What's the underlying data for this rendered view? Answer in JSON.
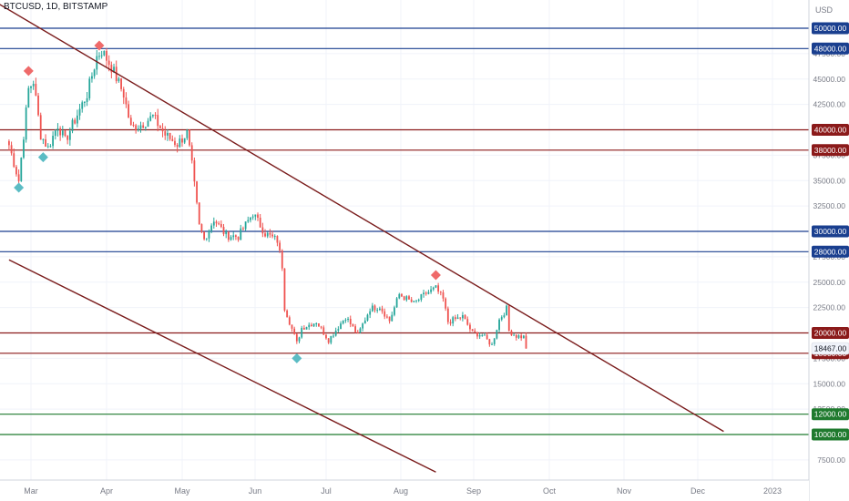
{
  "header": {
    "symbol": "BTCUSD, 1D, BITSTAMP",
    "currency": "USD"
  },
  "colors": {
    "up": "#26a69a",
    "down": "#ef5350",
    "blue_level": "#1a3f8f",
    "red_level": "#8b1a1a",
    "green_level": "#1f7a2e",
    "trend_line": "#7a1c1c",
    "marker_high": "#ef6a6a",
    "marker_low": "#5bbcc4",
    "last_price_bg": "#f0f3fa",
    "grid": "#f0f3fa",
    "axis_text": "#787b86"
  },
  "chart_data": {
    "type": "candlestick",
    "title": "",
    "xlabel": "",
    "ylabel": "",
    "ylim": [
      6300,
      52500
    ],
    "x_ticks": [
      "Mar",
      "Apr",
      "May",
      "Jun",
      "Jul",
      "Aug",
      "Sep",
      "Oct",
      "Nov",
      "Dec",
      "2023"
    ],
    "y_ticks": [
      "7500.00",
      "10000.00",
      "12500.00",
      "15000.00",
      "17500.00",
      "20000.00",
      "22500.00",
      "25000.00",
      "27500.00",
      "30000.00",
      "32500.00",
      "35000.00",
      "37500.00",
      "40000.00",
      "42500.00",
      "45000.00",
      "47500.00",
      "50000.00"
    ],
    "price_path": [
      [
        "02-20",
        38500
      ],
      [
        "02-24",
        35000
      ],
      [
        "02-28",
        44000
      ],
      [
        "03-02",
        44800
      ],
      [
        "03-05",
        39500
      ],
      [
        "03-08",
        38200
      ],
      [
        "03-12",
        40500
      ],
      [
        "03-15",
        38900
      ],
      [
        "03-20",
        41500
      ],
      [
        "03-24",
        43500
      ],
      [
        "03-28",
        47200
      ],
      [
        "03-30",
        47800
      ],
      [
        "04-03",
        46200
      ],
      [
        "04-08",
        43500
      ],
      [
        "04-11",
        40200
      ],
      [
        "04-15",
        40500
      ],
      [
        "04-20",
        41300
      ],
      [
        "04-25",
        39500
      ],
      [
        "04-30",
        38600
      ],
      [
        "05-04",
        39700
      ],
      [
        "05-06",
        36500
      ],
      [
        "05-09",
        30500
      ],
      [
        "05-11",
        29200
      ],
      [
        "05-15",
        31200
      ],
      [
        "05-20",
        29600
      ],
      [
        "05-25",
        29500
      ],
      [
        "05-31",
        31800
      ],
      [
        "06-05",
        29800
      ],
      [
        "06-10",
        29100
      ],
      [
        "06-12",
        26600
      ],
      [
        "06-13",
        22500
      ],
      [
        "06-18",
        19000
      ],
      [
        "06-20",
        20500
      ],
      [
        "06-26",
        21100
      ],
      [
        "07-01",
        19300
      ],
      [
        "07-08",
        21600
      ],
      [
        "07-13",
        19800
      ],
      [
        "07-18",
        22400
      ],
      [
        "07-22",
        22600
      ],
      [
        "07-26",
        21200
      ],
      [
        "07-30",
        23800
      ],
      [
        "08-05",
        22900
      ],
      [
        "08-10",
        23900
      ],
      [
        "08-14",
        24400
      ],
      [
        "08-17",
        23300
      ],
      [
        "08-19",
        21100
      ],
      [
        "08-25",
        21600
      ],
      [
        "08-29",
        20000
      ],
      [
        "09-02",
        19800
      ],
      [
        "09-06",
        18800
      ],
      [
        "09-09",
        21300
      ],
      [
        "09-12",
        22400
      ],
      [
        "09-13",
        20200
      ],
      [
        "09-16",
        19700
      ],
      [
        "09-19",
        19600
      ],
      [
        "09-20",
        18467
      ]
    ],
    "horizontal_levels": [
      {
        "value": 50000,
        "label": "50000.00",
        "kind": "blue"
      },
      {
        "value": 48000,
        "label": "48000.00",
        "kind": "blue"
      },
      {
        "value": 40000,
        "label": "40000.00",
        "kind": "red"
      },
      {
        "value": 38000,
        "label": "38000.00",
        "kind": "red"
      },
      {
        "value": 30000,
        "label": "30000.00",
        "kind": "blue"
      },
      {
        "value": 28000,
        "label": "28000.00",
        "kind": "blue"
      },
      {
        "value": 20000,
        "label": "20000.00",
        "kind": "red"
      },
      {
        "value": 18000,
        "label": "18000.00",
        "kind": "red"
      },
      {
        "value": 12000,
        "label": "12000.00",
        "kind": "green"
      },
      {
        "value": 10000,
        "label": "10000.00",
        "kind": "green"
      }
    ],
    "last_price": {
      "value": 18467,
      "label": "18467.00"
    },
    "trend_lines": [
      {
        "from": [
          "02-08",
          53500
        ],
        "to": [
          "12-10",
          10300
        ]
      },
      {
        "from": [
          "02-20",
          27200
        ],
        "to": [
          "08-14",
          6300
        ]
      }
    ],
    "markers": [
      {
        "date": "02-24",
        "price": 34300,
        "kind": "low"
      },
      {
        "date": "02-28",
        "price": 45800,
        "kind": "high"
      },
      {
        "date": "03-06",
        "price": 37300,
        "kind": "low"
      },
      {
        "date": "03-29",
        "price": 48300,
        "kind": "high"
      },
      {
        "date": "06-18",
        "price": 17500,
        "kind": "low"
      },
      {
        "date": "08-14",
        "price": 25700,
        "kind": "high"
      }
    ],
    "grid": true,
    "legend": "none"
  }
}
